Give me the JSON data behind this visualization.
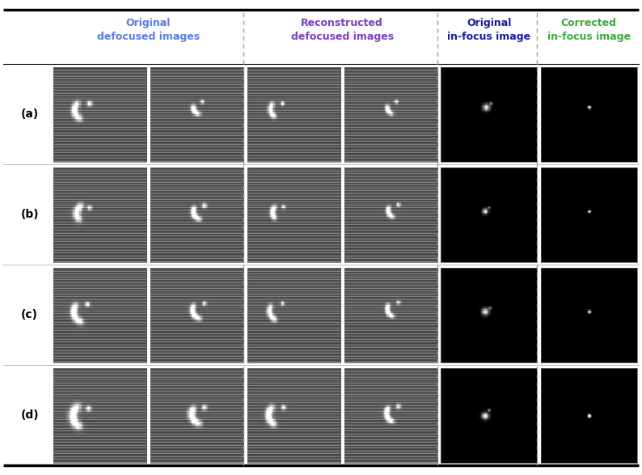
{
  "title_col1": "Original\ndefocused images",
  "title_col2": "Reconstructed\ndefocused images",
  "title_col3": "Original\nin-focus image",
  "title_col4": "Corrected\nin-focus image",
  "title_col1_color": "#5B7BE8",
  "title_col2_color": "#7B3FC4",
  "title_col3_color": "#1a1aaa",
  "title_col4_color": "#3daa3d",
  "row_labels": [
    "(a)",
    "(b)",
    "(c)",
    "(d)"
  ],
  "background_color": "#ffffff",
  "fig_width": 7.94,
  "fig_height": 5.87,
  "dpi": 100
}
